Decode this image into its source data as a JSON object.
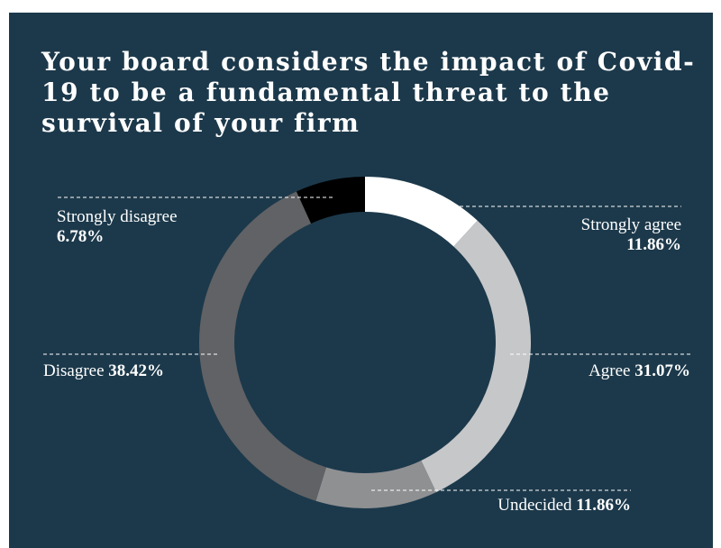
{
  "chart_data": {
    "type": "pie",
    "title": "Your board considers the impact of Covid-19 to be a fundamental threat to the survival of your firm",
    "slices": [
      {
        "label": "Strongly agree",
        "value": 11.86,
        "display": "11.86%",
        "color": "#ffffff"
      },
      {
        "label": "Agree",
        "value": 31.07,
        "display": "31.07%",
        "color": "#c6c7c9"
      },
      {
        "label": "Undecided",
        "value": 11.86,
        "display": "11.86%",
        "color": "#8f9092"
      },
      {
        "label": "Disagree",
        "value": 38.42,
        "display": "38.42%",
        "color": "#616265"
      },
      {
        "label": "Strongly disagree",
        "value": 6.78,
        "display": "6.78%",
        "color": "#000000"
      }
    ],
    "colors": {
      "background": "#1c394b",
      "page": "#ffffff",
      "text": "#ffffff"
    }
  }
}
